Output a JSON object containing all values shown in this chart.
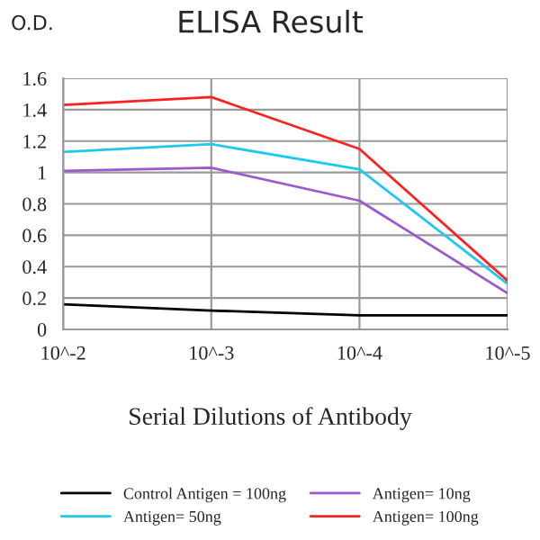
{
  "chart_data": {
    "type": "line",
    "title": "ELISA Result",
    "ylabel": "O.D.",
    "xlabel": "Serial Dilutions of Antibody",
    "categories": [
      "10^-2",
      "10^-3",
      "10^-4",
      "10^-5"
    ],
    "series": [
      {
        "name": "Control Antigen = 100ng",
        "color": "#000000",
        "values": [
          0.16,
          0.12,
          0.09,
          0.09
        ]
      },
      {
        "name": "Antigen= 10ng",
        "color": "#9b59d0",
        "values": [
          1.01,
          1.03,
          0.82,
          0.23
        ]
      },
      {
        "name": "Antigen= 50ng",
        "color": "#1ec8f0",
        "values": [
          1.13,
          1.18,
          1.02,
          0.29
        ]
      },
      {
        "name": "Antigen= 100ng",
        "color": "#ff2020",
        "values": [
          1.43,
          1.48,
          1.15,
          0.31
        ]
      }
    ],
    "ylim": [
      0,
      1.6
    ],
    "yticks": [
      0,
      0.2,
      0.4,
      0.6,
      0.8,
      1,
      1.2,
      1.4,
      1.6
    ],
    "grid": true,
    "legend": "bottom",
    "marker": "none",
    "line_style": "solid"
  }
}
